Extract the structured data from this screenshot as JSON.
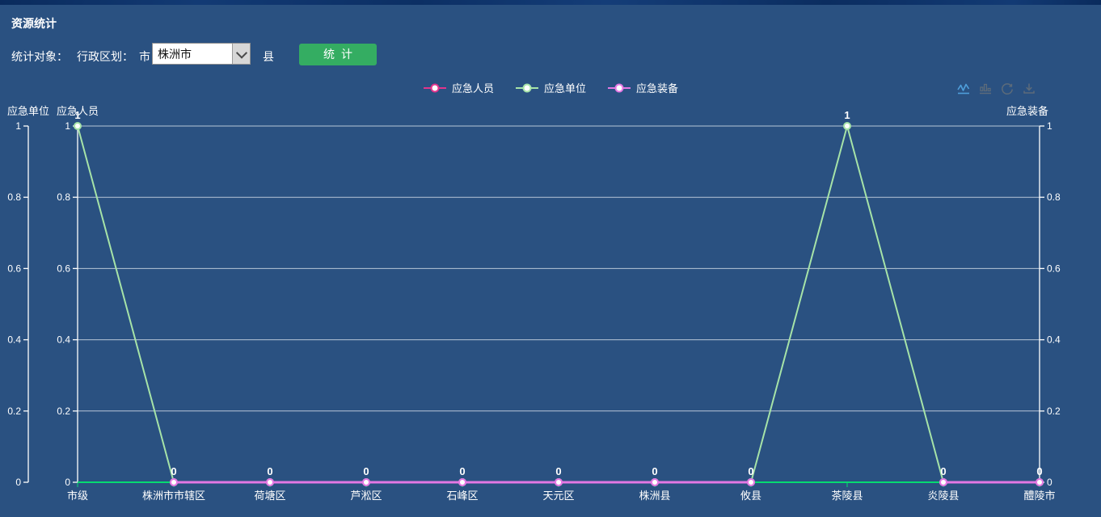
{
  "header": {
    "title": "资源统计"
  },
  "toolbar": {
    "stat_object_label": "统计对象：",
    "admin_division_label": "行政区划：",
    "city_label": "市",
    "city_select": {
      "value": "株洲市"
    },
    "county_label": "县",
    "stat_button_label": "统计"
  },
  "toolbox": {
    "icons": [
      "switch-to-line-chart-icon",
      "switch-to-bar-chart-icon",
      "restore-icon",
      "save-as-image-icon"
    ],
    "active_icon": "switch-to-line-chart-icon"
  },
  "colors": {
    "background": "#2a5181",
    "top_strip": "#0d2f64",
    "button_green": "#34ad62",
    "series_personnel_pink": "#e2348c",
    "series_unit_green": "#a6e3a8",
    "series_equipment_orchid": "#e478e4",
    "x_axis_green": "#06da71",
    "grid_line": "#e7edf4",
    "axis_white": "#ffffff",
    "toolbox_active_blue": "#4f9fdb",
    "toolbox_gray": "#5c6b7a"
  },
  "chart_data": {
    "type": "line",
    "categories": [
      "市级",
      "株洲市市辖区",
      "荷塘区",
      "芦淞区",
      "石峰区",
      "天元区",
      "株洲县",
      "攸县",
      "茶陵县",
      "炎陵县",
      "醴陵市"
    ],
    "series": [
      {
        "id": "personnel",
        "name": "应急人员",
        "color": "#e2348c",
        "y_axis": "应急人员",
        "line_width": 2,
        "values": [
          null,
          0,
          0,
          0,
          0,
          0,
          0,
          0,
          null,
          0,
          0
        ]
      },
      {
        "id": "unit",
        "name": "应急单位",
        "color": "#a6e3a8",
        "y_axis": "应急单位",
        "line_width": 2,
        "values": [
          1,
          0,
          0,
          0,
          0,
          0,
          0,
          0,
          1,
          0,
          0
        ]
      },
      {
        "id": "equipment",
        "name": "应急装备",
        "color": "#e478e4",
        "y_axis": "应急装备",
        "line_width": 3,
        "values": [
          null,
          0,
          0,
          0,
          0,
          0,
          0,
          0,
          null,
          0,
          0
        ]
      }
    ],
    "y_axes": [
      {
        "name": "应急单位",
        "position": "left",
        "min": 0,
        "max": 1
      },
      {
        "name": "应急人员",
        "position": "left",
        "min": 0,
        "max": 1
      },
      {
        "name": "应急装备",
        "position": "right",
        "min": 0,
        "max": 1
      }
    ],
    "y_tick_values": [
      0,
      0.2,
      0.4,
      0.6,
      0.8,
      1
    ],
    "y_tick_labels": [
      "0",
      "0.2",
      "0.4",
      "0.6",
      "0.8",
      "1"
    ],
    "legend": {
      "position": "top-center",
      "items": [
        "应急人员",
        "应急单位",
        "应急装备"
      ]
    },
    "grid": true,
    "point_labels_visible": true
  }
}
